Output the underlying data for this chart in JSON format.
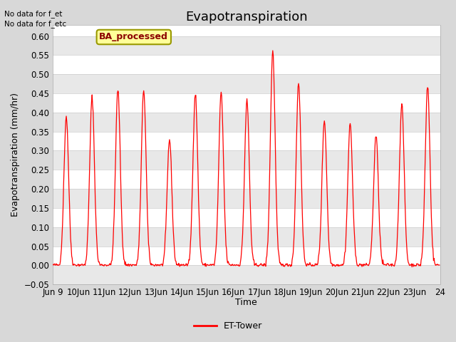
{
  "title": "Evapotranspiration",
  "ylabel": "Evapotranspiration (mm/hr)",
  "xlabel": "Time",
  "ylim": [
    -0.05,
    0.63
  ],
  "yticks": [
    -0.05,
    0.0,
    0.05,
    0.1,
    0.15,
    0.2,
    0.25,
    0.3,
    0.35,
    0.4,
    0.45,
    0.5,
    0.55,
    0.6
  ],
  "legend_label": "ET-Tower",
  "legend_color": "red",
  "ba_box_text": "BA_processed",
  "no_data_text1": "No data for f_et",
  "no_data_text2": "No data for f_etc",
  "line_color": "red",
  "fig_bg_color": "#D8D8D8",
  "plot_bg_color": "#FFFFFF",
  "band_color": "#E8E8E8",
  "start_day": 9,
  "end_day": 24,
  "daily_peaks": [
    0.39,
    0.44,
    0.46,
    0.46,
    0.33,
    0.45,
    0.45,
    0.43,
    0.56,
    0.48,
    0.38,
    0.37,
    0.34,
    0.42,
    0.47
  ],
  "title_fontsize": 13,
  "axis_fontsize": 9,
  "tick_fontsize": 8.5
}
